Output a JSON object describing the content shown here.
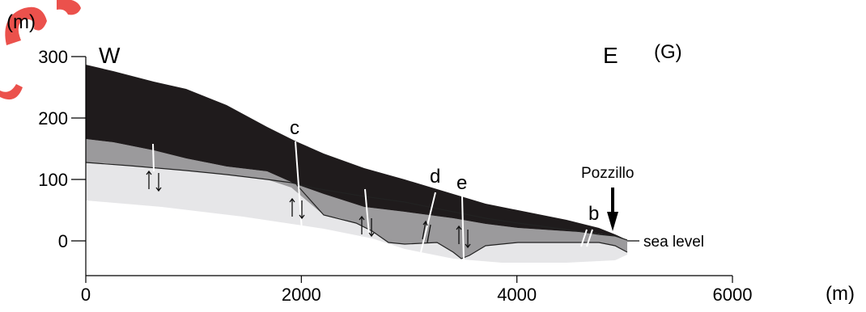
{
  "figure": {
    "y_unit": "(m)",
    "x_unit": "(m)",
    "west_label": "W",
    "east_label": "E",
    "panel_label": "(G)",
    "locality_label": "Pozzillo",
    "sea_level_label": "sea level",
    "fault_labels": [
      "c",
      "d",
      "e",
      "b"
    ],
    "colors": {
      "top_unit": "#1f1b1c",
      "middle_unit": "#9b9a9c",
      "bottom_unit": "#e6e6e8",
      "logo_watermark": "#e8322d"
    }
  },
  "chart_data": {
    "type": "diagram",
    "xlim": [
      0,
      6000
    ],
    "ylim": [
      -50,
      300
    ],
    "x_ticks": [
      "0",
      "2000",
      "4000",
      "6000"
    ],
    "y_ticks": [
      "300",
      "200",
      "100",
      "0"
    ],
    "x_tick_values": [
      0,
      2000,
      4000,
      6000
    ],
    "y_tick_values": [
      300,
      200,
      100,
      0
    ]
  }
}
